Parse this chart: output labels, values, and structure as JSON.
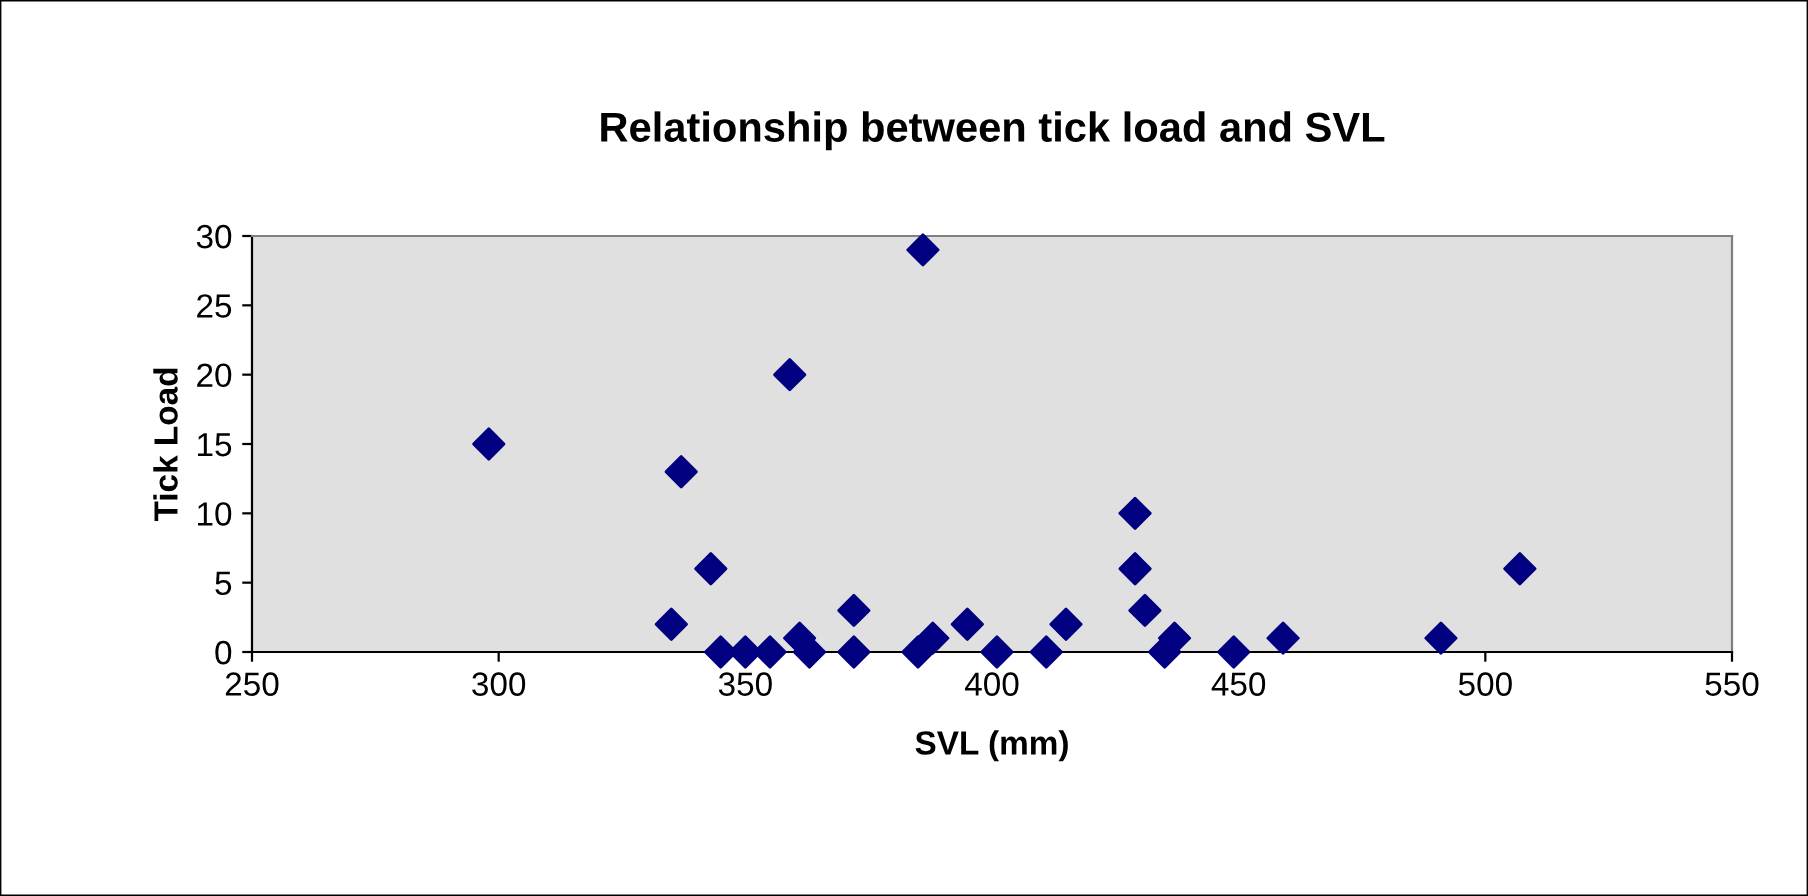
{
  "chart_data": {
    "type": "scatter",
    "title": "Relationship between tick load and SVL",
    "xlabel": "SVL (mm)",
    "ylabel": "Tick Load",
    "series": [
      {
        "color": "#000080",
        "x": [
          298,
          337,
          343,
          335,
          345,
          350,
          355,
          359,
          361,
          363,
          372,
          372,
          385,
          388,
          386,
          395,
          401,
          411,
          415,
          429,
          429,
          431,
          435,
          437,
          449,
          459,
          491,
          507
        ],
        "values": [
          15,
          13,
          6,
          2,
          0,
          0,
          0,
          20,
          1,
          0,
          0,
          3,
          0,
          1,
          29,
          2,
          0,
          0,
          2,
          10,
          6,
          3,
          0,
          1,
          0,
          1,
          1,
          6
        ]
      }
    ],
    "marker": "diamond",
    "xlim": [
      250,
      550
    ],
    "xticks": [
      250,
      300,
      350,
      400,
      450,
      500,
      550
    ],
    "ylim": [
      0,
      30
    ],
    "yticks": [
      0,
      5,
      10,
      15,
      20,
      25,
      30
    ],
    "grid": false,
    "legend": false
  }
}
